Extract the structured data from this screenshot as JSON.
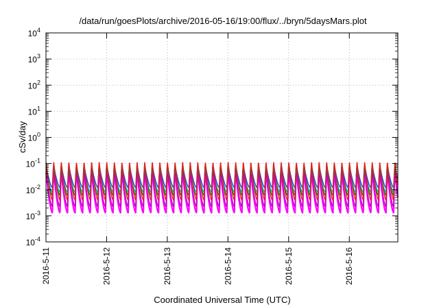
{
  "chart_data": {
    "type": "line",
    "title": "/data/run/goesPlots/archive/2016-05-16/19:00/flux/../bryn/5daysMars.plot",
    "xlabel": "Coordinated Universal Time (UTC)",
    "ylabel": "cSv/day",
    "yscale": "log",
    "ylim": [
      0.0001,
      10000
    ],
    "xlim_days": [
      0,
      5.8
    ],
    "y_tick_labels": [
      {
        "base": "10",
        "exp": "-4"
      },
      {
        "base": "10",
        "exp": "-3"
      },
      {
        "base": "10",
        "exp": "-2"
      },
      {
        "base": "10",
        "exp": "-1"
      },
      {
        "base": "10",
        "exp": "0"
      },
      {
        "base": "10",
        "exp": "1"
      },
      {
        "base": "10",
        "exp": "2"
      },
      {
        "base": "10",
        "exp": "3"
      },
      {
        "base": "10",
        "exp": "4"
      }
    ],
    "x_tick_labels": [
      "2016-5-11",
      "2016-5-12",
      "2016-5-13",
      "2016-5-14",
      "2016-5-15",
      "2016-5-16"
    ],
    "grid": true,
    "legend": "none",
    "cycles_per_day": 8,
    "series": [
      {
        "color": "#ff00ff",
        "peak": 0.045,
        "trough": 0.0013
      },
      {
        "color": "#c000c0",
        "peak": 0.05,
        "trough": 0.0022
      },
      {
        "color": "#00c8c8",
        "peak": 0.07,
        "trough": 0.008
      },
      {
        "color": "#2040e0",
        "peak": 0.085,
        "trough": 0.012
      },
      {
        "color": "#008000",
        "peak": 0.075,
        "trough": 0.006
      },
      {
        "color": "#e02020",
        "peak": 0.11,
        "trough": 0.004
      }
    ]
  }
}
